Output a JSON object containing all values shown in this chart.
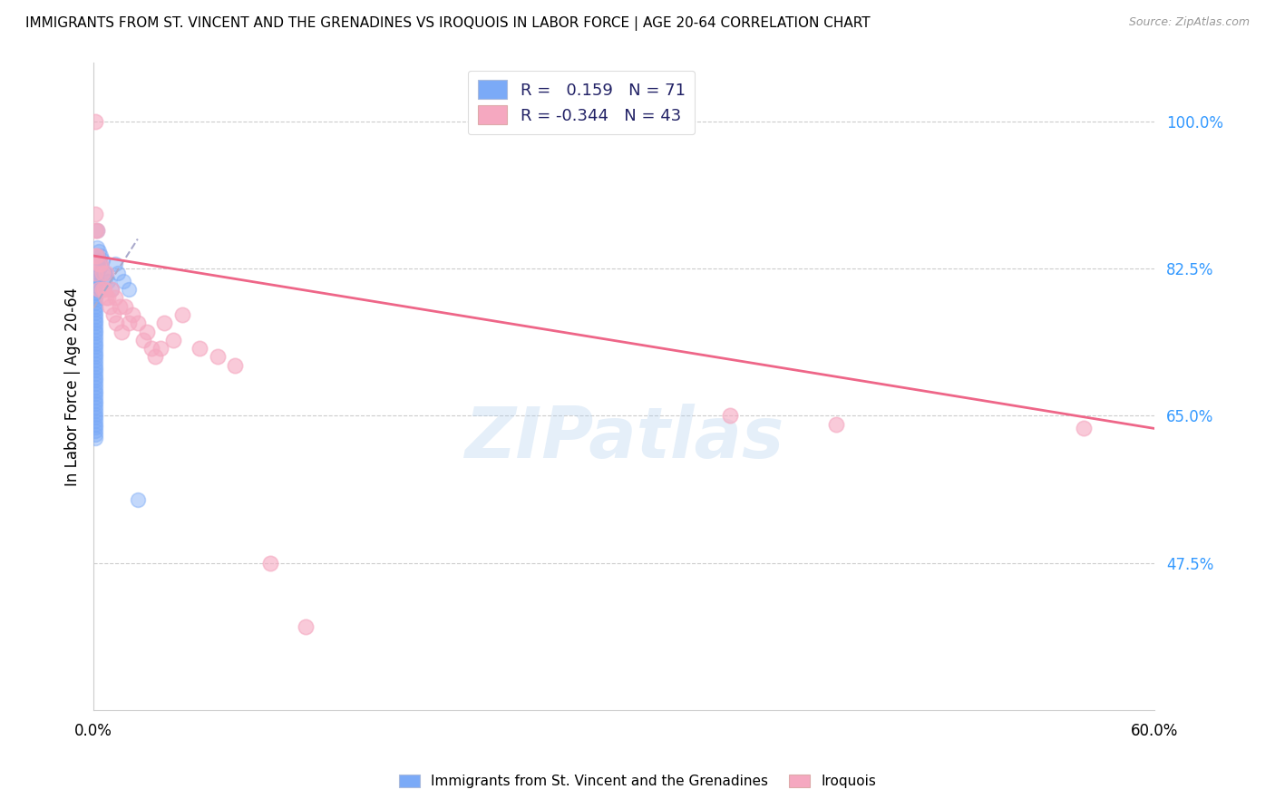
{
  "title": "IMMIGRANTS FROM ST. VINCENT AND THE GRENADINES VS IROQUOIS IN LABOR FORCE | AGE 20-64 CORRELATION CHART",
  "source": "Source: ZipAtlas.com",
  "ylabel": "In Labor Force | Age 20-64",
  "ytick_labels": [
    "100.0%",
    "82.5%",
    "65.0%",
    "47.5%"
  ],
  "ytick_values": [
    1.0,
    0.825,
    0.65,
    0.475
  ],
  "xlim": [
    0.0,
    0.6
  ],
  "ylim": [
    0.3,
    1.07
  ],
  "blue_R": 0.159,
  "blue_N": 71,
  "pink_R": -0.344,
  "pink_N": 43,
  "legend_label_blue": "Immigrants from St. Vincent and the Grenadines",
  "legend_label_pink": "Iroquois",
  "blue_color": "#7BAAF7",
  "pink_color": "#F5A8C0",
  "blue_line_color": "#AAAACC",
  "pink_line_color": "#EE6688",
  "watermark": "ZIPatlas",
  "blue_x": [
    0.001,
    0.001,
    0.001,
    0.001,
    0.001,
    0.001,
    0.001,
    0.001,
    0.001,
    0.001,
    0.001,
    0.001,
    0.001,
    0.001,
    0.001,
    0.001,
    0.001,
    0.001,
    0.001,
    0.001,
    0.001,
    0.001,
    0.001,
    0.001,
    0.001,
    0.001,
    0.001,
    0.001,
    0.001,
    0.001,
    0.001,
    0.001,
    0.001,
    0.001,
    0.001,
    0.001,
    0.001,
    0.001,
    0.001,
    0.001,
    0.001,
    0.001,
    0.001,
    0.001,
    0.001,
    0.001,
    0.001,
    0.001,
    0.001,
    0.001,
    0.002,
    0.002,
    0.002,
    0.002,
    0.002,
    0.002,
    0.003,
    0.003,
    0.003,
    0.004,
    0.004,
    0.005,
    0.006,
    0.007,
    0.008,
    0.01,
    0.012,
    0.014,
    0.017,
    0.02,
    0.025
  ],
  "blue_y": [
    0.83,
    0.82,
    0.815,
    0.81,
    0.805,
    0.8,
    0.796,
    0.792,
    0.788,
    0.784,
    0.78,
    0.776,
    0.772,
    0.768,
    0.764,
    0.76,
    0.756,
    0.752,
    0.748,
    0.744,
    0.74,
    0.736,
    0.732,
    0.728,
    0.724,
    0.72,
    0.716,
    0.712,
    0.708,
    0.704,
    0.7,
    0.696,
    0.692,
    0.688,
    0.684,
    0.68,
    0.676,
    0.672,
    0.668,
    0.664,
    0.66,
    0.656,
    0.652,
    0.648,
    0.644,
    0.64,
    0.636,
    0.632,
    0.628,
    0.624,
    0.87,
    0.85,
    0.84,
    0.83,
    0.82,
    0.81,
    0.845,
    0.835,
    0.825,
    0.84,
    0.828,
    0.835,
    0.82,
    0.815,
    0.81,
    0.8,
    0.83,
    0.82,
    0.81,
    0.8,
    0.55
  ],
  "pink_x": [
    0.001,
    0.001,
    0.001,
    0.001,
    0.001,
    0.002,
    0.002,
    0.003,
    0.003,
    0.004,
    0.005,
    0.005,
    0.006,
    0.007,
    0.007,
    0.008,
    0.009,
    0.01,
    0.011,
    0.012,
    0.013,
    0.015,
    0.016,
    0.018,
    0.02,
    0.022,
    0.025,
    0.028,
    0.03,
    0.033,
    0.035,
    0.038,
    0.04,
    0.045,
    0.05,
    0.06,
    0.07,
    0.08,
    0.1,
    0.12,
    0.36,
    0.42,
    0.56
  ],
  "pink_y": [
    1.0,
    0.89,
    0.87,
    0.84,
    0.82,
    0.87,
    0.84,
    0.83,
    0.8,
    0.83,
    0.82,
    0.8,
    0.8,
    0.82,
    0.79,
    0.79,
    0.78,
    0.8,
    0.77,
    0.79,
    0.76,
    0.78,
    0.75,
    0.78,
    0.76,
    0.77,
    0.76,
    0.74,
    0.75,
    0.73,
    0.72,
    0.73,
    0.76,
    0.74,
    0.77,
    0.73,
    0.72,
    0.71,
    0.475,
    0.4,
    0.65,
    0.64,
    0.635
  ],
  "blue_trendline_x": [
    0.0,
    0.025
  ],
  "blue_trendline_y": [
    0.778,
    0.86
  ],
  "pink_trendline_x": [
    0.0,
    0.6
  ],
  "pink_trendline_y": [
    0.84,
    0.635
  ]
}
